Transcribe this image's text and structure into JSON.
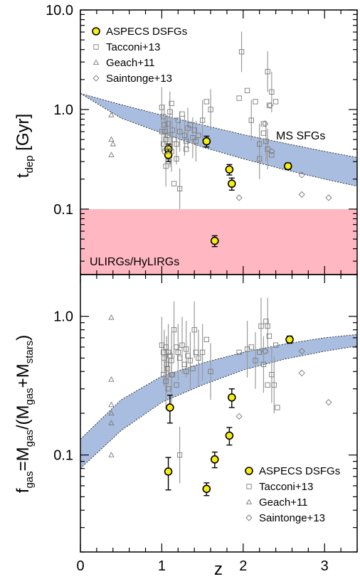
{
  "chart_data": [
    {
      "type": "scatter",
      "panel": "top",
      "ylabel_main": "t",
      "ylabel_sub": "dep",
      "ylabel_tail": " [Gyr]",
      "xlim": [
        0,
        3.4
      ],
      "ylim": [
        0.022,
        10.0
      ],
      "yscale": "log",
      "ytick_values": [
        0.1,
        1.0,
        10.0
      ],
      "ytick_labels": [
        "0.1",
        "1.0",
        "10.0"
      ],
      "legend_position": "top-left",
      "legend": [
        "ASPECS DSFGs",
        "Tacconi+13",
        "Geach+11",
        "Saintonge+13"
      ],
      "annotations": {
        "ms_band": "MS SFGs",
        "ulirg_region": "ULIRGs/HyLIRGs"
      },
      "colors": {
        "band": "#a9bde0",
        "ulirg": "#ffb7c2",
        "aspecs": "#f5ee11",
        "gray": "#8a8a8a"
      },
      "ms_band": {
        "x": [
          0,
          0.5,
          1.0,
          1.5,
          2.0,
          2.5,
          3.0,
          3.4
        ],
        "upper": [
          1.45,
          1.12,
          0.88,
          0.7,
          0.56,
          0.46,
          0.38,
          0.33
        ],
        "lower": [
          1.45,
          0.82,
          0.58,
          0.42,
          0.32,
          0.25,
          0.2,
          0.17
        ]
      },
      "ulirg_region": {
        "ymin": 0.022,
        "ymax": 0.1
      },
      "series": [
        {
          "name": "ASPECS DSFGs",
          "marker": "circle-yellow",
          "points": [
            [
              1.08,
              0.4,
              0.05
            ],
            [
              1.08,
              0.35,
              0.05
            ],
            [
              1.55,
              0.48,
              0.06
            ],
            [
              1.83,
              0.25,
              0.03
            ],
            [
              1.86,
              0.18,
              0.025
            ],
            [
              1.65,
              0.048,
              0.006
            ],
            [
              2.55,
              0.27,
              0.02
            ]
          ]
        },
        {
          "name": "Tacconi+13",
          "marker": "open-square",
          "points": [
            [
              1.0,
              1.05
            ],
            [
              1.02,
              0.85
            ],
            [
              1.03,
              0.7
            ],
            [
              1.04,
              0.6
            ],
            [
              1.05,
              0.5
            ],
            [
              1.02,
              0.45
            ],
            [
              1.07,
              0.55
            ],
            [
              1.08,
              0.72
            ],
            [
              1.1,
              0.95
            ],
            [
              1.12,
              1.15
            ],
            [
              1.13,
              0.62
            ],
            [
              1.15,
              0.5
            ],
            [
              1.18,
              0.45
            ],
            [
              1.2,
              0.78
            ],
            [
              1.22,
              0.6
            ],
            [
              1.25,
              0.9
            ],
            [
              1.28,
              0.55
            ],
            [
              1.3,
              0.48
            ],
            [
              1.32,
              0.65
            ],
            [
              1.35,
              0.7
            ],
            [
              1.38,
              0.52
            ],
            [
              1.4,
              0.62
            ],
            [
              1.42,
              0.48
            ],
            [
              1.45,
              0.55
            ],
            [
              1.05,
              0.27
            ],
            [
              1.08,
              0.3
            ],
            [
              1.1,
              0.42
            ],
            [
              1.15,
              0.18
            ],
            [
              1.22,
              0.16
            ],
            [
              1.3,
              0.4
            ],
            [
              1.0,
              0.6
            ],
            [
              1.04,
              0.38
            ],
            [
              1.12,
              0.38
            ],
            [
              1.18,
              0.32
            ],
            [
              1.5,
              0.78
            ],
            [
              1.55,
              1.2
            ],
            [
              1.6,
              1.0
            ],
            [
              1.95,
              1.3
            ],
            [
              1.98,
              3.8
            ],
            [
              2.05,
              1.55
            ],
            [
              2.1,
              0.78
            ],
            [
              2.15,
              1.2
            ],
            [
              2.2,
              0.45
            ],
            [
              2.25,
              0.72
            ],
            [
              2.3,
              2.4
            ],
            [
              2.32,
              1.1
            ],
            [
              2.35,
              1.5
            ],
            [
              2.4,
              1.2
            ],
            [
              2.2,
              0.32
            ],
            [
              2.25,
              0.58
            ],
            [
              2.3,
              0.4
            ],
            [
              2.35,
              0.35
            ],
            [
              2.28,
              0.48
            ]
          ]
        },
        {
          "name": "Geach+11",
          "marker": "open-triangle",
          "points": [
            [
              0.38,
              0.88
            ],
            [
              0.38,
              0.5
            ],
            [
              0.4,
              0.45
            ],
            [
              0.38,
              0.35
            ]
          ]
        },
        {
          "name": "Saintonge+13",
          "marker": "open-diamond",
          "points": [
            [
              1.95,
              0.13
            ],
            [
              2.27,
              0.72
            ],
            [
              2.33,
              1.1
            ],
            [
              2.35,
              0.38
            ],
            [
              2.72,
              0.22
            ],
            [
              2.72,
              0.14
            ],
            [
              3.05,
              0.13
            ]
          ]
        }
      ]
    },
    {
      "type": "scatter",
      "panel": "bottom",
      "ylabel_main": "f",
      "ylabel_sub": "gas",
      "ylabel_mid": "=M",
      "ylabel_sub2": "gas",
      "ylabel_mid2": "/(M",
      "ylabel_sub3": "gas",
      "ylabel_mid3": "+M",
      "ylabel_sub4": "stars",
      "ylabel_tail": ")",
      "xlabel": "z",
      "xlim": [
        0,
        3.4
      ],
      "ylim": [
        0.02,
        2.0
      ],
      "yscale": "log",
      "xtick_values": [
        0,
        1,
        2,
        3
      ],
      "xtick_labels": [
        "0",
        "1",
        "2",
        "3"
      ],
      "ytick_values": [
        0.1,
        1.0
      ],
      "ytick_labels": [
        "0.1",
        "1.0"
      ],
      "legend_position": "bottom-right",
      "legend": [
        "ASPECS DSFGs",
        "Tacconi+13",
        "Geach+11",
        "Saintonge+13"
      ],
      "band": {
        "x": [
          0,
          0.5,
          1.0,
          1.5,
          2.0,
          2.5,
          3.0,
          3.4
        ],
        "upper": [
          0.13,
          0.25,
          0.37,
          0.46,
          0.55,
          0.63,
          0.7,
          0.74
        ],
        "lower": [
          0.08,
          0.15,
          0.24,
          0.32,
          0.41,
          0.49,
          0.56,
          0.61
        ]
      },
      "series": [
        {
          "name": "ASPECS DSFGs",
          "marker": "circle-yellow",
          "points": [
            [
              1.08,
              0.076,
              0.02
            ],
            [
              1.1,
              0.22,
              0.05
            ],
            [
              1.55,
              0.057,
              0.006
            ],
            [
              1.65,
              0.093,
              0.012
            ],
            [
              1.83,
              0.138,
              0.02
            ],
            [
              1.86,
              0.26,
              0.04
            ],
            [
              2.57,
              0.68,
              0.04
            ]
          ]
        },
        {
          "name": "Tacconi+13",
          "marker": "open-square",
          "points": [
            [
              1.0,
              0.62
            ],
            [
              1.02,
              0.55
            ],
            [
              1.03,
              0.5
            ],
            [
              1.05,
              0.6
            ],
            [
              1.06,
              0.45
            ],
            [
              1.07,
              0.42
            ],
            [
              1.08,
              0.55
            ],
            [
              1.1,
              0.52
            ],
            [
              1.12,
              0.48
            ],
            [
              1.13,
              0.38
            ],
            [
              1.15,
              0.8
            ],
            [
              1.18,
              0.6
            ],
            [
              1.2,
              0.55
            ],
            [
              1.22,
              0.5
            ],
            [
              1.25,
              0.62
            ],
            [
              1.28,
              0.45
            ],
            [
              1.3,
              0.58
            ],
            [
              1.32,
              0.52
            ],
            [
              1.35,
              0.48
            ],
            [
              1.38,
              0.42
            ],
            [
              1.4,
              0.8
            ],
            [
              1.42,
              0.55
            ],
            [
              1.45,
              0.5
            ],
            [
              1.02,
              0.38
            ],
            [
              1.05,
              0.34
            ],
            [
              1.08,
              0.3
            ],
            [
              1.12,
              0.38
            ],
            [
              1.18,
              0.32
            ],
            [
              1.22,
              0.1
            ],
            [
              1.3,
              0.4
            ],
            [
              1.5,
              0.55
            ],
            [
              1.55,
              0.68
            ],
            [
              1.6,
              0.4
            ],
            [
              1.95,
              0.55
            ],
            [
              2.05,
              0.58
            ],
            [
              2.1,
              0.6
            ],
            [
              2.15,
              0.48
            ],
            [
              2.2,
              0.55
            ],
            [
              2.25,
              0.45
            ],
            [
              2.28,
              0.92
            ],
            [
              2.3,
              0.85
            ],
            [
              2.32,
              0.72
            ],
            [
              2.35,
              0.38
            ],
            [
              2.4,
              0.62
            ],
            [
              2.38,
              0.32
            ],
            [
              2.42,
              0.22
            ],
            [
              2.22,
              0.85
            ],
            [
              2.3,
              0.32
            ]
          ]
        },
        {
          "name": "Geach+11",
          "marker": "open-triangle",
          "points": [
            [
              0.38,
              0.98
            ],
            [
              0.38,
              0.35
            ],
            [
              0.38,
              0.23
            ],
            [
              0.38,
              0.2
            ],
            [
              0.38,
              0.17
            ],
            [
              0.38,
              0.1
            ]
          ]
        },
        {
          "name": "Saintonge+13",
          "marker": "open-diamond",
          "points": [
            [
              1.95,
              0.19
            ],
            [
              2.27,
              0.56
            ],
            [
              2.72,
              0.56
            ],
            [
              2.72,
              0.39
            ],
            [
              3.05,
              0.24
            ]
          ]
        }
      ]
    }
  ]
}
